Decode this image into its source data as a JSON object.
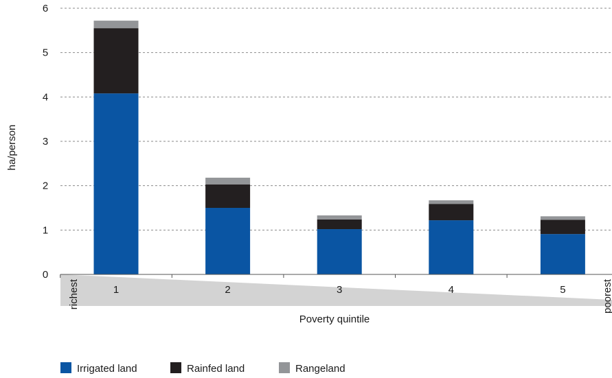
{
  "chart_data": {
    "type": "bar",
    "stacked": true,
    "categories": [
      "1",
      "2",
      "3",
      "4",
      "5"
    ],
    "series": [
      {
        "name": "Irrigated land",
        "color": "#0a55a3",
        "values": [
          4.08,
          1.5,
          1.02,
          1.22,
          0.91
        ]
      },
      {
        "name": "Rainfed land",
        "color": "#231f20",
        "values": [
          1.47,
          0.53,
          0.22,
          0.37,
          0.32
        ]
      },
      {
        "name": "Rangeland",
        "color": "#939598",
        "values": [
          0.17,
          0.15,
          0.09,
          0.08,
          0.08
        ]
      }
    ],
    "xlabel": "Poverty quintile",
    "ylabel": "ha/person",
    "ylim": [
      0,
      6
    ],
    "yticks": [
      "0",
      "1",
      "2",
      "3",
      "4",
      "5",
      "6"
    ],
    "grid": "dashed horizontal",
    "legend_position": "bottom-left",
    "annotations": {
      "left": "richest",
      "right": "poorest"
    },
    "wedge_color": "#d3d3d3"
  }
}
